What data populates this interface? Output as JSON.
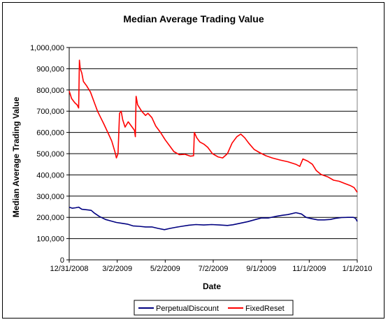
{
  "chart_data": {
    "type": "line",
    "title": "Median Average Trading Value",
    "xlabel": "Date",
    "ylabel": "Median Average Trading Value",
    "x_range": [
      "2008-12-31",
      "2010-01-01"
    ],
    "ylim": [
      0,
      1000000
    ],
    "x_tick_labels": [
      "12/31/2008",
      "3/2/2009",
      "5/2/2009",
      "7/2/2009",
      "9/1/2009",
      "11/1/2009",
      "1/1/2010"
    ],
    "y_tick_labels": [
      "0",
      "100,000",
      "200,000",
      "300,000",
      "400,000",
      "500,000",
      "600,000",
      "700,000",
      "800,000",
      "900,000",
      "1,000,000"
    ],
    "grid": "horizontal major gridlines",
    "legend_position": "bottom",
    "series": [
      {
        "name": "PerpetualDiscount",
        "color": "#000080",
        "points": [
          [
            "2008-12-31",
            248000
          ],
          [
            "2009-01-04",
            243000
          ],
          [
            "2009-01-08",
            245000
          ],
          [
            "2009-01-12",
            248000
          ],
          [
            "2009-01-16",
            238000
          ],
          [
            "2009-01-22",
            236000
          ],
          [
            "2009-01-28",
            233000
          ],
          [
            "2009-02-01",
            220000
          ],
          [
            "2009-02-07",
            205000
          ],
          [
            "2009-02-15",
            190000
          ],
          [
            "2009-02-22",
            183000
          ],
          [
            "2009-03-01",
            176000
          ],
          [
            "2009-03-08",
            172000
          ],
          [
            "2009-03-15",
            168000
          ],
          [
            "2009-03-22",
            160000
          ],
          [
            "2009-03-30",
            158000
          ],
          [
            "2009-04-07",
            155000
          ],
          [
            "2009-04-15",
            155000
          ],
          [
            "2009-04-23",
            148000
          ],
          [
            "2009-05-01",
            142000
          ],
          [
            "2009-05-08",
            148000
          ],
          [
            "2009-05-15",
            153000
          ],
          [
            "2009-05-23",
            158000
          ],
          [
            "2009-06-01",
            163000
          ],
          [
            "2009-06-10",
            166000
          ],
          [
            "2009-06-20",
            164000
          ],
          [
            "2009-06-30",
            166000
          ],
          [
            "2009-07-10",
            164000
          ],
          [
            "2009-07-20",
            162000
          ],
          [
            "2009-07-27",
            165000
          ],
          [
            "2009-08-05",
            172000
          ],
          [
            "2009-08-15",
            180000
          ],
          [
            "2009-08-25",
            190000
          ],
          [
            "2009-09-01",
            197000
          ],
          [
            "2009-09-10",
            197000
          ],
          [
            "2009-09-20",
            205000
          ],
          [
            "2009-09-28",
            210000
          ],
          [
            "2009-10-05",
            213000
          ],
          [
            "2009-10-15",
            222000
          ],
          [
            "2009-10-22",
            216000
          ],
          [
            "2009-10-28",
            200000
          ],
          [
            "2009-11-05",
            193000
          ],
          [
            "2009-11-12",
            188000
          ],
          [
            "2009-11-20",
            188000
          ],
          [
            "2009-11-28",
            190000
          ],
          [
            "2009-12-05",
            196000
          ],
          [
            "2009-12-12",
            199000
          ],
          [
            "2009-12-20",
            200000
          ],
          [
            "2009-12-27",
            200000
          ],
          [
            "2009-12-30",
            195000
          ],
          [
            "2010-01-01",
            181000
          ]
        ]
      },
      {
        "name": "FixedReset",
        "color": "#ff0000",
        "points": [
          [
            "2008-12-31",
            795000
          ],
          [
            "2009-01-03",
            760000
          ],
          [
            "2009-01-07",
            740000
          ],
          [
            "2009-01-10",
            730000
          ],
          [
            "2009-01-12",
            715000
          ],
          [
            "2009-01-13",
            940000
          ],
          [
            "2009-01-14",
            900000
          ],
          [
            "2009-01-16",
            880000
          ],
          [
            "2009-01-18",
            840000
          ],
          [
            "2009-01-22",
            820000
          ],
          [
            "2009-01-27",
            790000
          ],
          [
            "2009-02-01",
            740000
          ],
          [
            "2009-02-05",
            700000
          ],
          [
            "2009-02-09",
            670000
          ],
          [
            "2009-02-13",
            640000
          ],
          [
            "2009-02-18",
            600000
          ],
          [
            "2009-02-23",
            560000
          ],
          [
            "2009-02-27",
            510000
          ],
          [
            "2009-03-01",
            480000
          ],
          [
            "2009-03-03",
            500000
          ],
          [
            "2009-03-05",
            690000
          ],
          [
            "2009-03-07",
            700000
          ],
          [
            "2009-03-09",
            660000
          ],
          [
            "2009-03-12",
            625000
          ],
          [
            "2009-03-16",
            650000
          ],
          [
            "2009-03-20",
            630000
          ],
          [
            "2009-03-24",
            610000
          ],
          [
            "2009-03-25",
            580000
          ],
          [
            "2009-03-26",
            770000
          ],
          [
            "2009-03-28",
            730000
          ],
          [
            "2009-04-02",
            700000
          ],
          [
            "2009-04-07",
            680000
          ],
          [
            "2009-04-10",
            690000
          ],
          [
            "2009-04-15",
            670000
          ],
          [
            "2009-04-20",
            630000
          ],
          [
            "2009-04-26",
            600000
          ],
          [
            "2009-05-02",
            565000
          ],
          [
            "2009-05-08",
            535000
          ],
          [
            "2009-05-13",
            510000
          ],
          [
            "2009-05-20",
            495000
          ],
          [
            "2009-05-27",
            497000
          ],
          [
            "2009-06-03",
            488000
          ],
          [
            "2009-06-07",
            490000
          ],
          [
            "2009-06-08",
            600000
          ],
          [
            "2009-06-11",
            575000
          ],
          [
            "2009-06-15",
            555000
          ],
          [
            "2009-06-20",
            545000
          ],
          [
            "2009-06-25",
            530000
          ],
          [
            "2009-07-01",
            500000
          ],
          [
            "2009-07-08",
            485000
          ],
          [
            "2009-07-14",
            480000
          ],
          [
            "2009-07-20",
            500000
          ],
          [
            "2009-07-26",
            550000
          ],
          [
            "2009-08-01",
            580000
          ],
          [
            "2009-08-06",
            592000
          ],
          [
            "2009-08-11",
            575000
          ],
          [
            "2009-08-16",
            550000
          ],
          [
            "2009-08-23",
            520000
          ],
          [
            "2009-08-30",
            505000
          ],
          [
            "2009-09-07",
            490000
          ],
          [
            "2009-09-15",
            480000
          ],
          [
            "2009-09-25",
            470000
          ],
          [
            "2009-10-05",
            462000
          ],
          [
            "2009-10-15",
            450000
          ],
          [
            "2009-10-20",
            440000
          ],
          [
            "2009-10-24",
            475000
          ],
          [
            "2009-10-30",
            465000
          ],
          [
            "2009-11-05",
            450000
          ],
          [
            "2009-11-10",
            420000
          ],
          [
            "2009-11-16",
            402000
          ],
          [
            "2009-11-25",
            390000
          ],
          [
            "2009-12-02",
            375000
          ],
          [
            "2009-12-09",
            370000
          ],
          [
            "2009-12-16",
            360000
          ],
          [
            "2009-12-23",
            350000
          ],
          [
            "2009-12-28",
            340000
          ],
          [
            "2010-01-01",
            318000
          ]
        ]
      }
    ]
  }
}
